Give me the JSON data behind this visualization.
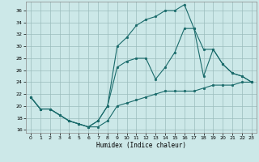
{
  "xlabel": "Humidex (Indice chaleur)",
  "xlim": [
    -0.5,
    23.5
  ],
  "ylim": [
    15.5,
    37.5
  ],
  "yticks": [
    16,
    18,
    20,
    22,
    24,
    26,
    28,
    30,
    32,
    34,
    36
  ],
  "xticks": [
    0,
    1,
    2,
    3,
    4,
    5,
    6,
    7,
    8,
    9,
    10,
    11,
    12,
    13,
    14,
    15,
    16,
    17,
    18,
    19,
    20,
    21,
    22,
    23
  ],
  "bg_color": "#cce8e8",
  "grid_color": "#9bbcbc",
  "line_color": "#1a6b6b",
  "line1_x": [
    0,
    1,
    2,
    3,
    4,
    5,
    6,
    7,
    8,
    9,
    10,
    11,
    12,
    13,
    14,
    15,
    16,
    17,
    18,
    19,
    20,
    21,
    22,
    23
  ],
  "line1_y": [
    21.5,
    19.5,
    19.5,
    18.5,
    17.5,
    17.0,
    16.5,
    16.5,
    17.5,
    20.0,
    20.5,
    21.0,
    21.5,
    22.0,
    22.5,
    22.5,
    22.5,
    22.5,
    23.0,
    23.5,
    23.5,
    23.5,
    24.0,
    24.0
  ],
  "line2_x": [
    0,
    1,
    2,
    3,
    4,
    5,
    6,
    7,
    8,
    9,
    10,
    11,
    12,
    13,
    14,
    15,
    16,
    17,
    18,
    19,
    20,
    21,
    22,
    23
  ],
  "line2_y": [
    21.5,
    19.5,
    19.5,
    18.5,
    17.5,
    17.0,
    16.5,
    17.5,
    20.0,
    30.0,
    31.5,
    33.5,
    34.5,
    35.0,
    36.0,
    36.0,
    37.0,
    33.0,
    25.0,
    29.5,
    27.0,
    25.5,
    25.0,
    24.0
  ],
  "line3_x": [
    0,
    1,
    2,
    3,
    4,
    5,
    6,
    7,
    8,
    9,
    10,
    11,
    12,
    13,
    14,
    15,
    16,
    17,
    18,
    19,
    20,
    21,
    22,
    23
  ],
  "line3_y": [
    21.5,
    19.5,
    19.5,
    18.5,
    17.5,
    17.0,
    16.5,
    17.5,
    20.0,
    26.5,
    27.5,
    28.0,
    28.0,
    24.5,
    26.5,
    29.0,
    33.0,
    33.0,
    29.5,
    29.5,
    27.0,
    25.5,
    25.0,
    24.0
  ]
}
